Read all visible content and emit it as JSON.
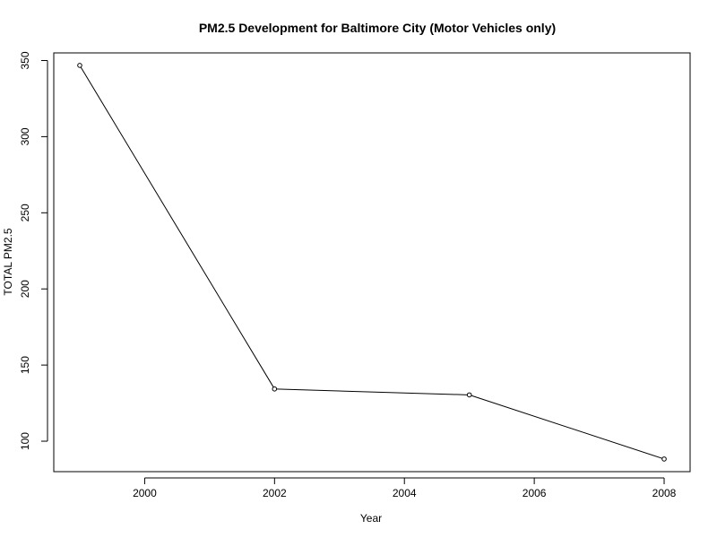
{
  "chart_data": {
    "type": "line",
    "title": "PM2.5 Development for Baltimore City (Motor Vehicles only)",
    "xlabel": "Year",
    "ylabel": "TOTAL PM2.5",
    "x": [
      1999,
      2002,
      2005,
      2008
    ],
    "series": [
      {
        "values": [
          346.8,
          134.3,
          130.4,
          88.3
        ]
      }
    ],
    "xlim": [
      1998.6,
      2008.4
    ],
    "ylim": [
      80,
      355
    ],
    "xticks": [
      2000,
      2002,
      2004,
      2006,
      2008
    ],
    "yticks": [
      100,
      150,
      200,
      250,
      300,
      350
    ],
    "xtick_labels": [
      "2000",
      "2002",
      "2004",
      "2006",
      "2008"
    ],
    "ytick_labels": [
      "100",
      "150",
      "200",
      "250",
      "300",
      "350"
    ],
    "grid": false,
    "legend": "none",
    "line_color": "#000000",
    "marker": "open-circle"
  }
}
